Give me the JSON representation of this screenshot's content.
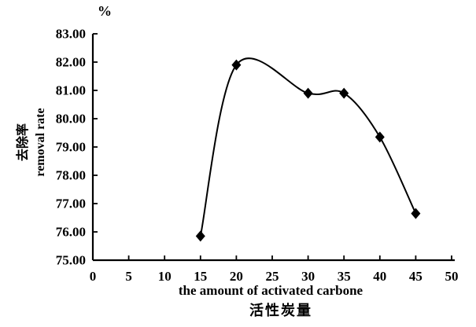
{
  "chart_data": {
    "type": "line",
    "title": "",
    "unit_label": "%",
    "xlabel_en": "the amount of activated carbone",
    "xlabel_zh": "活性炭量",
    "ylabel_zh": "去除率",
    "ylabel_en": "removal rate",
    "x": [
      15,
      20,
      30,
      35,
      40,
      45
    ],
    "series": [
      {
        "name": "removal rate",
        "values": [
          75.85,
          81.9,
          80.9,
          80.9,
          79.35,
          76.65
        ]
      }
    ],
    "xlim": [
      0,
      50
    ],
    "ylim": [
      75,
      83
    ],
    "x_ticks": [
      0,
      5,
      10,
      15,
      20,
      25,
      30,
      35,
      40,
      45,
      50
    ],
    "y_ticks": [
      75,
      76,
      77,
      78,
      79,
      80,
      81,
      82,
      83
    ],
    "y_tick_decimals": 2,
    "grid": false,
    "legend": "none",
    "marker": "diamond",
    "curve": "smooth",
    "line_color": "#000000",
    "marker_color": "#000000",
    "axis_color": "#000000",
    "background_color": "#ffffff"
  }
}
